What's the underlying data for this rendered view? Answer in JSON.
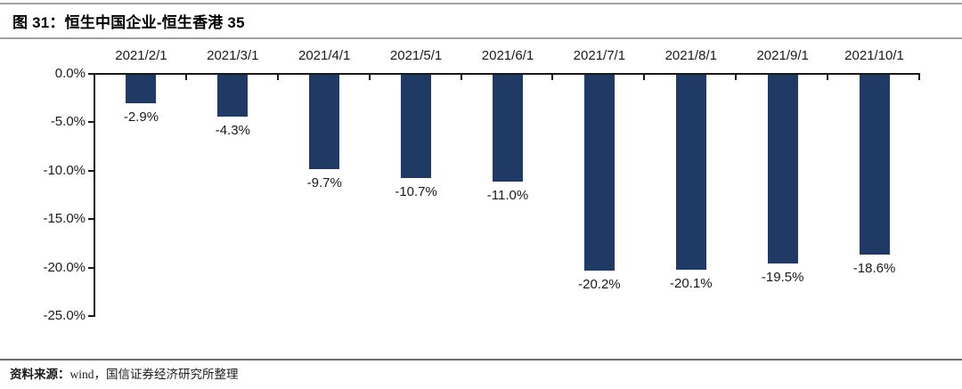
{
  "figure": {
    "title": "图 31：恒生中国企业-恒生香港 35",
    "source_label": "资料来源：",
    "source_body": "wind，国信证券经济研究所整理"
  },
  "colors": {
    "bar": "#1f3a64",
    "axis": "#1a1a1a"
  },
  "chart_data": {
    "type": "bar",
    "title": "恒生中国企业-恒生香港 35",
    "categories": [
      "2021/2/1",
      "2021/3/1",
      "2021/4/1",
      "2021/5/1",
      "2021/6/1",
      "2021/7/1",
      "2021/8/1",
      "2021/9/1",
      "2021/10/1"
    ],
    "values": [
      -2.9,
      -4.3,
      -9.7,
      -10.7,
      -11.0,
      -20.2,
      -20.1,
      -19.5,
      -18.6
    ],
    "value_labels": [
      "-2.9%",
      "-4.3%",
      "-9.7%",
      "-10.7%",
      "-11.0%",
      "-20.2%",
      "-20.1%",
      "-19.5%",
      "-18.6%"
    ],
    "xlabel": "",
    "ylabel": "",
    "ylim": [
      -25,
      0
    ],
    "y_tick_values": [
      0,
      -5,
      -10,
      -15,
      -20,
      -25
    ],
    "y_tick_labels": [
      "0.0%",
      "-5.0%",
      "-10.0%",
      "-15.0%",
      "-20.0%",
      "-25.0%"
    ],
    "x_axis_position": "top",
    "value_label_position": "below-bar",
    "grid": false,
    "legend": "none",
    "bar_color": "#1f3a64"
  }
}
